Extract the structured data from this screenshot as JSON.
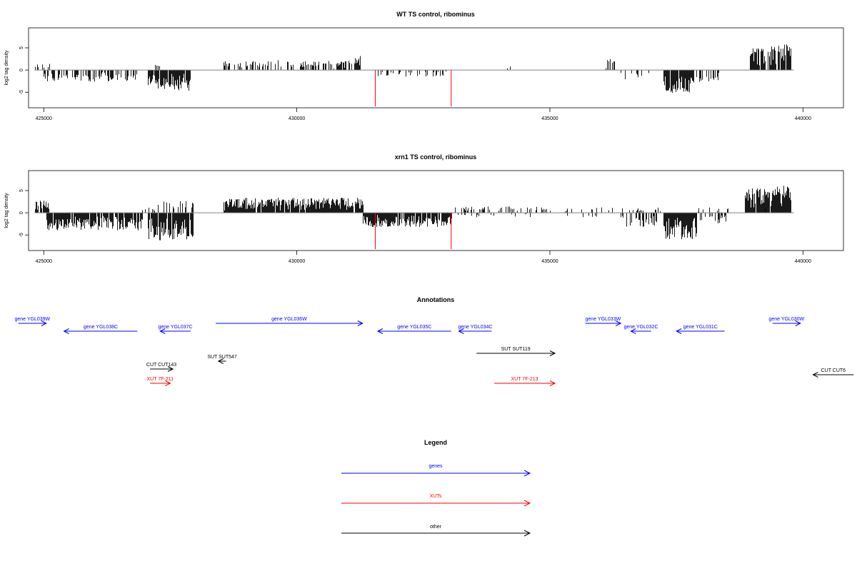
{
  "chart_data": [
    {
      "type": "bar",
      "title": "WT TS control, ribominus",
      "xlabel": "",
      "ylabel": "log2 tag density",
      "xlim": [
        424700,
        440800
      ],
      "ylim": [
        -8.5,
        9.5
      ],
      "x_ticks": [
        425000,
        430000,
        435000,
        440000
      ],
      "y_ticks": [
        -5,
        0,
        5
      ],
      "baseline_color": "#808080",
      "segments": [
        {
          "start": 424820,
          "end": 425140,
          "sign": 1,
          "amp": 1.5,
          "density": 0.35,
          "seed": 11
        },
        {
          "start": 425000,
          "end": 426850,
          "sign": -1,
          "amp": 2.6,
          "density": 0.5,
          "seed": 12
        },
        {
          "start": 427200,
          "end": 427300,
          "sign": 1,
          "amp": 1.8,
          "density": 0.6,
          "seed": 13
        },
        {
          "start": 427050,
          "end": 427900,
          "sign": -1,
          "amp": 4.8,
          "density": 0.85,
          "seed": 14
        },
        {
          "start": 428550,
          "end": 431200,
          "sign": 1,
          "amp": 2.2,
          "density": 0.45,
          "seed": 15
        },
        {
          "start": 431150,
          "end": 431250,
          "sign": 1,
          "amp": 3.2,
          "density": 0.8,
          "seed": 16
        },
        {
          "start": 431600,
          "end": 433000,
          "sign": -1,
          "amp": 1.5,
          "density": 0.25,
          "seed": 17
        },
        {
          "start": 433950,
          "end": 434350,
          "sign": 1,
          "amp": 0.8,
          "density": 0.1,
          "seed": 18
        },
        {
          "start": 436100,
          "end": 436300,
          "sign": 1,
          "amp": 2.5,
          "density": 0.3,
          "seed": 19
        },
        {
          "start": 436400,
          "end": 436800,
          "sign": -1,
          "amp": 2.2,
          "density": 0.3,
          "seed": 20
        },
        {
          "start": 436800,
          "end": 437200,
          "sign": -1,
          "amp": 1.2,
          "density": 0.1,
          "seed": 21
        },
        {
          "start": 437250,
          "end": 437850,
          "sign": -1,
          "amp": 5.2,
          "density": 0.9,
          "seed": 22
        },
        {
          "start": 437900,
          "end": 438350,
          "sign": -1,
          "amp": 2.8,
          "density": 0.25,
          "seed": 23
        },
        {
          "start": 438950,
          "end": 439250,
          "sign": 1,
          "amp": 5.0,
          "density": 0.85,
          "seed": 24
        },
        {
          "start": 439300,
          "end": 439750,
          "sign": 1,
          "amp": 5.8,
          "density": 0.9,
          "seed": 25
        }
      ],
      "red_markers": [
        {
          "x": 431550,
          "y": -8.2
        },
        {
          "x": 433050,
          "y": -8.2
        }
      ]
    },
    {
      "type": "bar",
      "title": "xrn1 TS control, ribominus",
      "xlabel": "",
      "ylabel": "log2 tag density",
      "xlim": [
        424700,
        440800
      ],
      "ylim": [
        -8.5,
        9.5
      ],
      "x_ticks": [
        425000,
        430000,
        435000,
        440000
      ],
      "y_ticks": [
        -5,
        0,
        5
      ],
      "baseline_color": "#808080",
      "segments": [
        {
          "start": 424820,
          "end": 425120,
          "sign": 1,
          "amp": 2.8,
          "density": 0.85,
          "seed": 31
        },
        {
          "start": 425050,
          "end": 426950,
          "sign": -1,
          "amp": 4.0,
          "density": 0.9,
          "seed": 32
        },
        {
          "start": 426950,
          "end": 427200,
          "sign": 1,
          "amp": 1.2,
          "density": 0.3,
          "seed": 33
        },
        {
          "start": 427050,
          "end": 427950,
          "sign": -1,
          "amp": 6.2,
          "density": 0.95,
          "seed": 34
        },
        {
          "start": 427250,
          "end": 427950,
          "sign": 1,
          "amp": 2.8,
          "density": 0.3,
          "seed": 35
        },
        {
          "start": 428550,
          "end": 431300,
          "sign": 1,
          "amp": 3.4,
          "density": 0.95,
          "seed": 36
        },
        {
          "start": 431300,
          "end": 433050,
          "sign": -1,
          "amp": 3.2,
          "density": 0.9,
          "seed": 37
        },
        {
          "start": 433050,
          "end": 434900,
          "sign": 1,
          "amp": 1.4,
          "density": 0.25,
          "seed": 38
        },
        {
          "start": 433050,
          "end": 434600,
          "sign": -1,
          "amp": 1.0,
          "density": 0.1,
          "seed": 39
        },
        {
          "start": 434900,
          "end": 436300,
          "sign": 1,
          "amp": 1.2,
          "density": 0.15,
          "seed": 40
        },
        {
          "start": 435300,
          "end": 436100,
          "sign": -1,
          "amp": 1.6,
          "density": 0.1,
          "seed": 41
        },
        {
          "start": 436400,
          "end": 437100,
          "sign": -1,
          "amp": 3.2,
          "density": 0.45,
          "seed": 42
        },
        {
          "start": 436400,
          "end": 437200,
          "sign": 1,
          "amp": 1.2,
          "density": 0.2,
          "seed": 43
        },
        {
          "start": 437250,
          "end": 437900,
          "sign": -1,
          "amp": 6.0,
          "density": 0.95,
          "seed": 44
        },
        {
          "start": 437900,
          "end": 438500,
          "sign": -1,
          "amp": 2.4,
          "density": 0.3,
          "seed": 45
        },
        {
          "start": 437900,
          "end": 438700,
          "sign": 1,
          "amp": 1.2,
          "density": 0.2,
          "seed": 46
        },
        {
          "start": 438850,
          "end": 439250,
          "sign": 1,
          "amp": 5.5,
          "density": 0.95,
          "seed": 47
        },
        {
          "start": 439250,
          "end": 439750,
          "sign": 1,
          "amp": 6.2,
          "density": 0.95,
          "seed": 48
        }
      ],
      "red_markers": [
        {
          "x": 431550,
          "y": -8.2
        },
        {
          "x": 433050,
          "y": -8.2
        }
      ]
    }
  ],
  "annotations": {
    "title": "Annotations",
    "features": [
      {
        "label": "gene YGL039W",
        "start": 424500,
        "end": 425050,
        "dir": "right",
        "row": 0,
        "color": "#0000ff"
      },
      {
        "label": "gene YGL038C",
        "start": 425400,
        "end": 426850,
        "dir": "left",
        "row": 1,
        "color": "#0000ff"
      },
      {
        "label": "gene YGL037C",
        "start": 427300,
        "end": 427900,
        "dir": "left",
        "row": 1,
        "color": "#0000ff"
      },
      {
        "label": "gene YGL036W",
        "start": 428400,
        "end": 431300,
        "dir": "right",
        "row": 0,
        "color": "#0000ff"
      },
      {
        "label": "gene YGL035C",
        "start": 431600,
        "end": 433050,
        "dir": "left",
        "row": 1,
        "color": "#0000ff"
      },
      {
        "label": "gene YGL034C",
        "start": 433200,
        "end": 433850,
        "dir": "left",
        "row": 1,
        "color": "#0000ff"
      },
      {
        "label": "gene YGL033W",
        "start": 435700,
        "end": 436400,
        "dir": "right",
        "row": 0,
        "color": "#0000ff"
      },
      {
        "label": "gene YGL032C",
        "start": 436600,
        "end": 437000,
        "dir": "left",
        "row": 1,
        "color": "#0000ff"
      },
      {
        "label": "gene YGL031C",
        "start": 437500,
        "end": 438450,
        "dir": "left",
        "row": 1,
        "color": "#0000ff"
      },
      {
        "label": "gene YGL030W",
        "start": 439400,
        "end": 439950,
        "dir": "right",
        "row": 0,
        "color": "#0000ff"
      },
      {
        "label": "SUT SUT119",
        "start": 433550,
        "end": 435100,
        "dir": "right",
        "row": 3,
        "color": "#000000"
      },
      {
        "label": "SUT SUT547",
        "start": 428450,
        "end": 428600,
        "dir": "left",
        "row": 4,
        "color": "#000000"
      },
      {
        "label": "CUT CUT143",
        "start": 427100,
        "end": 427550,
        "dir": "right",
        "row": 5,
        "color": "#000000"
      },
      {
        "label": "XUT 7F-211",
        "start": 427100,
        "end": 427500,
        "dir": "right",
        "row": 6,
        "color": "#ff0000"
      },
      {
        "label": "XUT 7F-213",
        "start": 433900,
        "end": 435100,
        "dir": "right",
        "row": 6,
        "color": "#ff0000"
      },
      {
        "label": "CUT CUT6",
        "start": 440200,
        "end": 441000,
        "dir": "left",
        "row": 5.5,
        "color": "#000000"
      }
    ]
  },
  "legend": {
    "title": "Legend",
    "items": [
      {
        "label": "genes",
        "color": "#0000ff"
      },
      {
        "label": "XUTs",
        "color": "#ff0000"
      },
      {
        "label": "other",
        "color": "#000000"
      }
    ]
  }
}
